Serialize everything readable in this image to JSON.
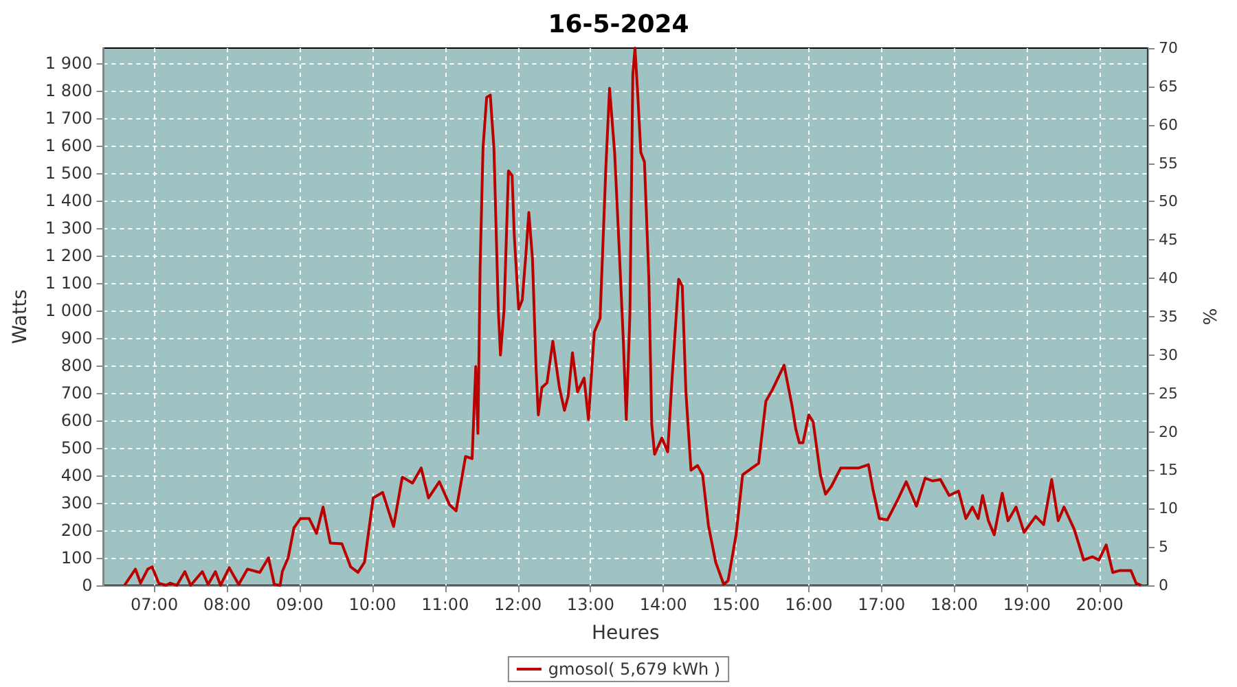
{
  "chart_data": {
    "type": "line",
    "title": "16-5-2024",
    "xlabel": "Heures",
    "ylabel": "Watts",
    "y2label": "%",
    "x": [
      6.59,
      6.74,
      6.81,
      6.91,
      6.97,
      7.06,
      7.16,
      7.22,
      7.31,
      7.42,
      7.5,
      7.66,
      7.74,
      7.84,
      7.91,
      8.03,
      8.16,
      8.28,
      8.45,
      8.57,
      8.65,
      8.73,
      8.76,
      8.84,
      8.92,
      9.01,
      9.13,
      9.23,
      9.32,
      9.42,
      9.58,
      9.7,
      9.8,
      9.89,
      10.01,
      10.14,
      10.29,
      10.41,
      10.55,
      10.67,
      10.77,
      10.92,
      11.06,
      11.15,
      11.28,
      11.37,
      11.42,
      11.45,
      11.48,
      11.52,
      11.57,
      11.62,
      11.67,
      11.73,
      11.76,
      11.81,
      11.87,
      11.92,
      11.95,
      12.01,
      12.06,
      12.11,
      12.15,
      12.2,
      12.25,
      12.28,
      12.33,
      12.4,
      12.48,
      12.57,
      12.64,
      12.69,
      12.75,
      12.82,
      12.91,
      12.97,
      13.05,
      13.13,
      13.21,
      13.26,
      13.33,
      13.39,
      13.45,
      13.49,
      13.54,
      13.58,
      13.61,
      13.65,
      13.69,
      13.74,
      13.8,
      13.84,
      13.88,
      13.98,
      14.06,
      14.12,
      14.21,
      14.26,
      14.31,
      14.38,
      14.47,
      14.54,
      14.62,
      14.72,
      14.83,
      14.89,
      15.0,
      15.09,
      15.22,
      15.31,
      15.41,
      15.5,
      15.66,
      15.77,
      15.82,
      15.87,
      15.92,
      16.0,
      16.06,
      16.16,
      16.23,
      16.31,
      16.44,
      16.69,
      16.82,
      16.88,
      16.97,
      17.08,
      17.22,
      17.34,
      17.48,
      17.6,
      17.7,
      17.81,
      17.93,
      18.06,
      18.16,
      18.25,
      18.33,
      18.39,
      18.47,
      18.55,
      18.66,
      18.74,
      18.85,
      18.96,
      19.12,
      19.23,
      19.34,
      19.43,
      19.51,
      19.65,
      19.78,
      19.9,
      19.99,
      20.09,
      20.18,
      20.28,
      20.43,
      20.5,
      20.57
    ],
    "series": [
      {
        "name": "gmosol( 5,679 kWh )",
        "color": "#bb0000",
        "values": [
          0,
          59,
          8,
          59,
          67,
          8,
          0,
          8,
          0,
          50,
          0,
          50,
          3,
          50,
          0,
          64,
          3,
          59,
          47,
          100,
          3,
          0,
          50,
          100,
          209,
          243,
          243,
          189,
          285,
          154,
          151,
          67,
          47,
          84,
          318,
          338,
          214,
          394,
          372,
          427,
          318,
          377,
          293,
          271,
          469,
          461,
          796,
          553,
          1156,
          1591,
          1776,
          1784,
          1591,
          1005,
          838,
          1005,
          1508,
          1491,
          1273,
          1005,
          1039,
          1206,
          1357,
          1189,
          787,
          620,
          720,
          737,
          888,
          720,
          637,
          687,
          846,
          704,
          754,
          603,
          921,
          972,
          1524,
          1809,
          1575,
          1240,
          888,
          603,
          988,
          1859,
          1955,
          1776,
          1575,
          1541,
          1122,
          586,
          477,
          536,
          486,
          754,
          1114,
          1089,
          704,
          419,
          436,
          402,
          218,
          84,
          3,
          17,
          184,
          402,
          427,
          444,
          670,
          712,
          801,
          653,
          570,
          519,
          519,
          620,
          595,
          402,
          332,
          360,
          427,
          427,
          439,
          352,
          243,
          238,
          310,
          377,
          288,
          390,
          380,
          385,
          327,
          343,
          243,
          285,
          243,
          327,
          235,
          184,
          335,
          235,
          285,
          193,
          251,
          221,
          385,
          235,
          285,
          204,
          92,
          104,
          92,
          147,
          47,
          54,
          54,
          8,
          0
        ]
      }
    ],
    "xlim": [
      6.3,
      20.66
    ],
    "xticks": [
      {
        "value": 7,
        "label": "07:00"
      },
      {
        "value": 8,
        "label": "08:00"
      },
      {
        "value": 9,
        "label": "09:00"
      },
      {
        "value": 10,
        "label": "10:00"
      },
      {
        "value": 11,
        "label": "11:00"
      },
      {
        "value": 12,
        "label": "12:00"
      },
      {
        "value": 13,
        "label": "13:00"
      },
      {
        "value": 14,
        "label": "14:00"
      },
      {
        "value": 15,
        "label": "15:00"
      },
      {
        "value": 16,
        "label": "16:00"
      },
      {
        "value": 17,
        "label": "17:00"
      },
      {
        "value": 18,
        "label": "18:00"
      },
      {
        "value": 19,
        "label": "19:00"
      },
      {
        "value": 20,
        "label": "20:00"
      }
    ],
    "ylim": [
      0,
      1955
    ],
    "yticks": [
      0,
      100,
      200,
      300,
      400,
      500,
      600,
      700,
      800,
      900,
      {
        "value": 1000,
        "label": "1 000"
      },
      {
        "value": 1100,
        "label": "1 100"
      },
      {
        "value": 1200,
        "label": "1 200"
      },
      {
        "value": 1300,
        "label": "1 300"
      },
      {
        "value": 1400,
        "label": "1 400"
      },
      {
        "value": 1500,
        "label": "1 500"
      },
      {
        "value": 1600,
        "label": "1 600"
      },
      {
        "value": 1700,
        "label": "1 700"
      },
      {
        "value": 1800,
        "label": "1 800"
      },
      {
        "value": 1900,
        "label": "1 900"
      }
    ],
    "y2lim": [
      0,
      70
    ],
    "y2ticks": [
      0,
      5,
      10,
      15,
      20,
      25,
      30,
      35,
      40,
      45,
      50,
      55,
      60,
      65,
      70
    ],
    "grid": true,
    "legend": "bottom",
    "marker": "none",
    "line_style": "solid"
  }
}
